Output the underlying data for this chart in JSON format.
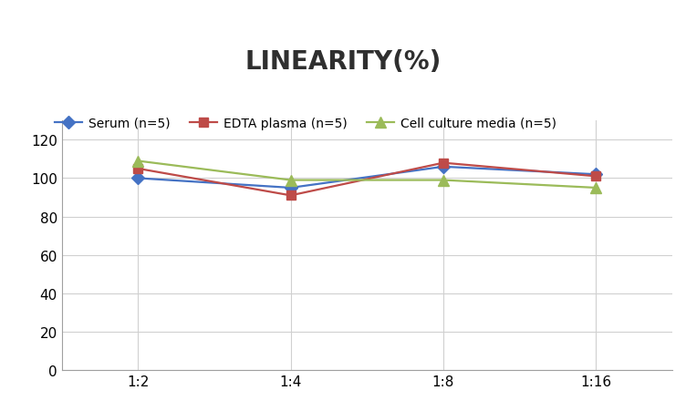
{
  "title": "LINEARITY(%)",
  "x_labels": [
    "1:2",
    "1:4",
    "1:8",
    "1:16"
  ],
  "x_positions": [
    0,
    1,
    2,
    3
  ],
  "series": [
    {
      "label": "Serum (n=5)",
      "values": [
        100,
        95,
        106,
        102
      ],
      "color": "#4472C4",
      "marker": "D",
      "marker_size": 7
    },
    {
      "label": "EDTA plasma (n=5)",
      "values": [
        105,
        91,
        108,
        101
      ],
      "color": "#BE4B48",
      "marker": "s",
      "marker_size": 7
    },
    {
      "label": "Cell culture media (n=5)",
      "values": [
        109,
        99,
        99,
        95
      ],
      "color": "#9BBB59",
      "marker": "^",
      "marker_size": 8
    }
  ],
  "ylim": [
    0,
    130
  ],
  "yticks": [
    0,
    20,
    40,
    60,
    80,
    100,
    120
  ],
  "grid_color": "#D0D0D0",
  "background_color": "#FFFFFF",
  "title_fontsize": 20,
  "legend_fontsize": 10,
  "tick_fontsize": 11
}
